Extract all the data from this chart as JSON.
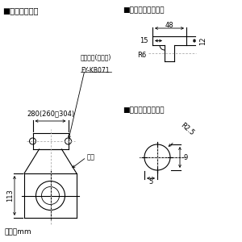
{
  "bg_color": "#ffffff",
  "line_color": "#000000",
  "dashed_color": "#aaaaaa",
  "title_left": "■吊り金具位置",
  "title_right1": "■吊り金具穴詳細図",
  "title_right2": "■本体取付穴詳細図",
  "label_bracket": "吊り金具(別売品)",
  "label_model": "FY-KB071",
  "label_width": "280(260〜304)",
  "label_body": "本体",
  "label_height": "113",
  "label_unit": "単位：mm",
  "label_48": "48",
  "label_15": "15",
  "label_12": "12",
  "label_R6": "R6",
  "label_R25": "R2.5",
  "label_9": "9",
  "label_5": "5"
}
